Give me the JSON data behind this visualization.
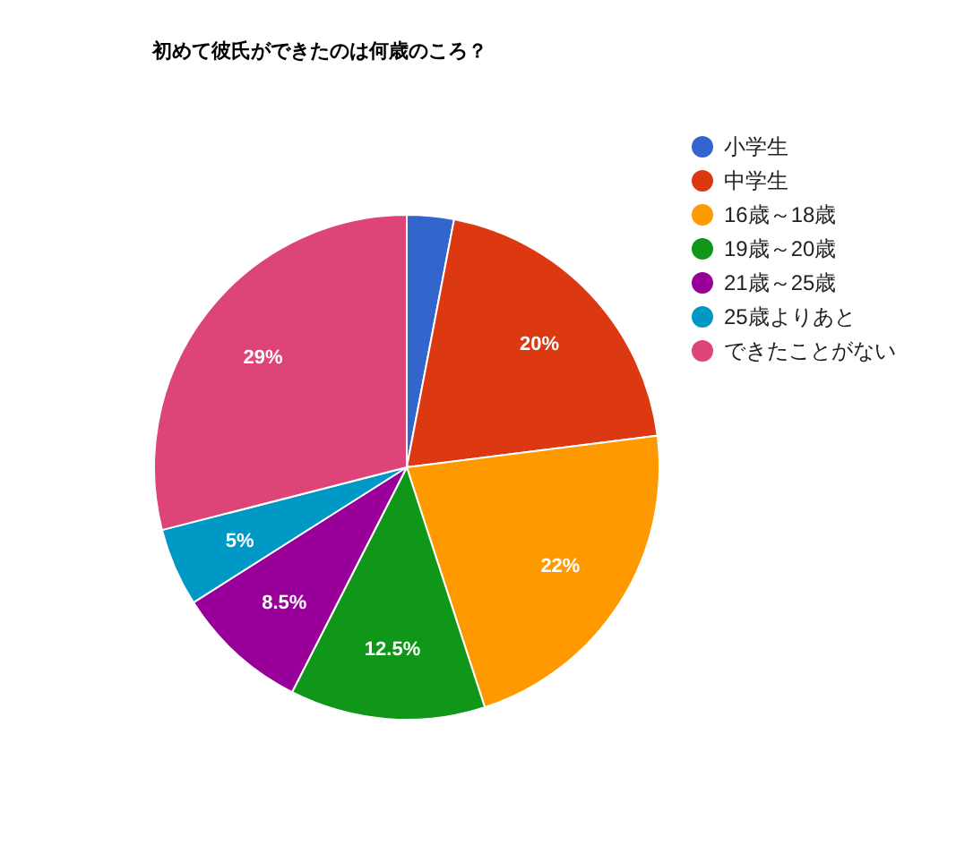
{
  "chart_data": {
    "type": "pie",
    "title": "初めて彼氏ができたのは何歳のころ？",
    "categories": [
      "小学生",
      "中学生",
      "16歳～18歳",
      "19歳～20歳",
      "21歳～25歳",
      "25歳よりあと",
      "できたことがない"
    ],
    "values": [
      3,
      20,
      22,
      12.5,
      8.5,
      5,
      29
    ],
    "colors": [
      "#3366cc",
      "#dc3912",
      "#ff9900",
      "#109618",
      "#990099",
      "#0099c6",
      "#dd4477"
    ],
    "value_labels": [
      null,
      "20%",
      "22%",
      "12.5%",
      "8.5%",
      "5%",
      "29%"
    ],
    "legend": "top right"
  }
}
